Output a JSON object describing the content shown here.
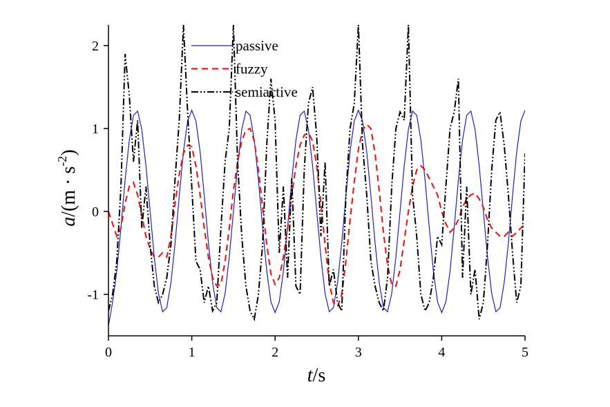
{
  "chart_data": {
    "type": "line",
    "xlabel_parts": [
      "t",
      "/s"
    ],
    "ylabel_parts": [
      "a",
      "/(m · s",
      "-2",
      ")"
    ],
    "xlim": [
      0,
      5
    ],
    "xticks": [
      0,
      1,
      2,
      3,
      4,
      5
    ],
    "ylim": [
      -1.5,
      2.25
    ],
    "yticks": [
      -1,
      0,
      1,
      2
    ],
    "legend": "upper left",
    "x": [
      0,
      0.05,
      0.1,
      0.15,
      0.2,
      0.25,
      0.3,
      0.35,
      0.4,
      0.45,
      0.5,
      0.55,
      0.6,
      0.65,
      0.7,
      0.75,
      0.8,
      0.85,
      0.9,
      0.95,
      1,
      1.05,
      1.1,
      1.15,
      1.2,
      1.25,
      1.3,
      1.35,
      1.4,
      1.45,
      1.5,
      1.55,
      1.6,
      1.65,
      1.7,
      1.75,
      1.8,
      1.85,
      1.9,
      1.95,
      2,
      2.05,
      2.1,
      2.15,
      2.2,
      2.25,
      2.3,
      2.35,
      2.4,
      2.45,
      2.5,
      2.55,
      2.6,
      2.65,
      2.7,
      2.75,
      2.8,
      2.85,
      2.9,
      2.95,
      3,
      3.05,
      3.1,
      3.15,
      3.2,
      3.25,
      3.3,
      3.35,
      3.4,
      3.45,
      3.5,
      3.55,
      3.6,
      3.65,
      3.7,
      3.75,
      3.8,
      3.85,
      3.9,
      3.95,
      4,
      4.05,
      4.1,
      4.15,
      4.2,
      4.25,
      4.3,
      4.35,
      4.4,
      4.45,
      4.5,
      4.55,
      4.6,
      4.65,
      4.7,
      4.75,
      4.8,
      4.85,
      4.9,
      4.95,
      5
    ],
    "series": [
      {
        "name": "passive",
        "color": "#1f1fb4",
        "style": "solid",
        "values": [
          -1.38,
          -1.09,
          -0.72,
          -0.19,
          0.38,
          0.86,
          1.16,
          1.21,
          0.99,
          0.55,
          0,
          -0.55,
          -0.99,
          -1.21,
          -1.16,
          -0.86,
          -0.38,
          0.19,
          0.72,
          1.09,
          1.22,
          1.09,
          0.72,
          0.19,
          -0.38,
          -0.86,
          -1.16,
          -1.21,
          -0.99,
          -0.55,
          0,
          0.55,
          0.99,
          1.21,
          1.16,
          0.86,
          0.38,
          -0.19,
          -0.72,
          -1.09,
          -1.22,
          -1.09,
          -0.72,
          -0.19,
          0.38,
          0.86,
          1.16,
          1.21,
          0.99,
          0.55,
          0,
          -0.55,
          -0.99,
          -1.21,
          -1.16,
          -0.86,
          -0.38,
          0.19,
          0.72,
          1.09,
          1.22,
          1.09,
          0.72,
          0.19,
          -0.38,
          -0.86,
          -1.16,
          -1.21,
          -0.99,
          -0.55,
          0,
          0.55,
          0.99,
          1.21,
          1.16,
          0.86,
          0.38,
          -0.19,
          -0.72,
          -1.09,
          -1.22,
          -1.09,
          -0.72,
          -0.19,
          0.38,
          0.86,
          1.16,
          1.21,
          0.99,
          0.55,
          0,
          -0.55,
          -0.99,
          -1.21,
          -1.16,
          -0.86,
          -0.38,
          0.19,
          0.72,
          1.09,
          1.22
        ]
      },
      {
        "name": "fuzzy",
        "color": "#e02020",
        "style": "dashed",
        "values": [
          0,
          -0.15,
          -0.3,
          -0.2,
          0.1,
          0.3,
          0.35,
          0.2,
          -0.05,
          -0.3,
          -0.45,
          -0.55,
          -0.55,
          -0.5,
          -0.55,
          -0.3,
          0.1,
          0.45,
          0.7,
          0.8,
          0.78,
          0.55,
          0.2,
          -0.2,
          -0.55,
          -0.8,
          -0.9,
          -0.88,
          -0.6,
          -0.2,
          0.25,
          0.6,
          0.85,
          0.98,
          1.0,
          0.85,
          0.5,
          0.05,
          -0.4,
          -0.75,
          -0.88,
          -0.8,
          -0.55,
          -0.2,
          0.2,
          0.55,
          0.8,
          0.92,
          0.95,
          0.85,
          0.55,
          0.1,
          -0.4,
          -0.85,
          -1.1,
          -1.15,
          -1.0,
          -0.6,
          -0.1,
          0.35,
          0.75,
          0.98,
          1.05,
          1.0,
          0.7,
          0.25,
          -0.25,
          -0.65,
          -0.88,
          -0.9,
          -0.7,
          -0.35,
          0,
          0.3,
          0.5,
          0.55,
          0.5,
          0.4,
          0.3,
          0.2,
          0,
          -0.15,
          -0.25,
          -0.2,
          -0.1,
          0.05,
          0.15,
          0.2,
          0.22,
          0.15,
          0.05,
          -0.1,
          -0.2,
          -0.25,
          -0.3,
          -0.3,
          -0.25,
          -0.3,
          -0.25,
          -0.2,
          -0.15
        ]
      },
      {
        "name": "semiactive",
        "color": "#000000",
        "style": "dashdotdot",
        "values": [
          -1.2,
          -1.0,
          -0.6,
          0.3,
          1.9,
          1.4,
          0.6,
          1.1,
          -0.2,
          0.3,
          -0.4,
          -0.9,
          -1.1,
          -1.0,
          -0.8,
          -0.4,
          0.4,
          1.1,
          2.25,
          1.2,
          0.3,
          -0.6,
          -0.7,
          -1.1,
          -0.9,
          -1.2,
          -1.1,
          -0.2,
          0.6,
          1.0,
          2.25,
          0.6,
          -0.3,
          -0.9,
          -1.2,
          -1.3,
          -1.0,
          -0.4,
          0.8,
          1.6,
          1.1,
          -0.5,
          0.3,
          -0.8,
          0.4,
          -0.9,
          -1.0,
          0.5,
          1.3,
          1.5,
          0.9,
          -0.3,
          0.6,
          -0.9,
          -0.7,
          -1.1,
          -1.2,
          0.2,
          1.0,
          1.3,
          2.25,
          0.8,
          0.2,
          -0.6,
          -0.9,
          -1.1,
          -1.2,
          -0.8,
          0.3,
          1.0,
          1.2,
          1.1,
          2.25,
          0.2,
          -0.3,
          -1.0,
          -1.2,
          -1.1,
          -0.8,
          -0.3,
          -0.4,
          0.3,
          1.0,
          1.2,
          1.6,
          -0.8,
          0.3,
          -1.0,
          -0.7,
          -1.3,
          -1.1,
          -0.4,
          0.5,
          1.1,
          1.2,
          0.8,
          0.2,
          -0.5,
          -1.1,
          -0.9,
          0.7
        ]
      }
    ]
  }
}
